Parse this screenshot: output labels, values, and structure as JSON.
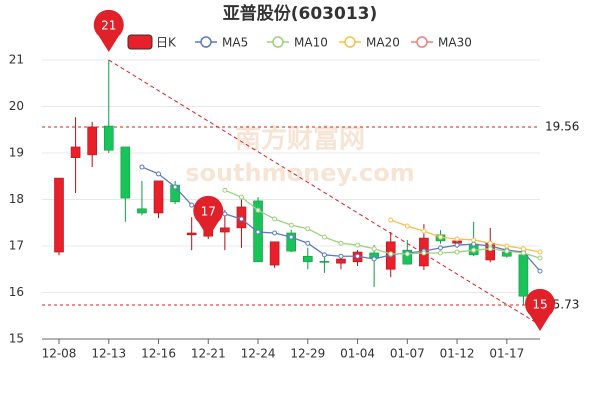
{
  "chart_data": {
    "type": "candlestick",
    "title": "亚普股份(603013)",
    "categories": [
      "12-08",
      null,
      null,
      "12-13",
      null,
      null,
      "12-16",
      null,
      null,
      "12-21",
      null,
      null,
      "12-24",
      null,
      null,
      "12-29",
      null,
      null,
      "01-04",
      null,
      null,
      "01-07",
      null,
      null,
      "01-12",
      null,
      null,
      "01-17",
      null,
      null
    ],
    "candle_name": "日K",
    "up_color": "#e8202a",
    "down_color": "#19c35a",
    "open": [
      16.87,
      18.9,
      18.96,
      19.58,
      19.13,
      17.8,
      17.71,
      18.31,
      17.24,
      17.21,
      17.3,
      17.39,
      17.97,
      16.59,
      17.28,
      16.78,
      16.67,
      16.63,
      16.66,
      16.85,
      16.5,
      16.91,
      16.57,
      17.24,
      17.06,
      17.04,
      16.7,
      16.87,
      16.81,
      15.92
    ],
    "high": [
      18.46,
      19.77,
      19.67,
      21,
      19.13,
      18.4,
      18.4,
      18.4,
      17.62,
      17.4,
      17.77,
      18.08,
      18.05,
      17.09,
      17.35,
      16.96,
      16.85,
      16.8,
      16.91,
      17.02,
      17.3,
      17.13,
      17.47,
      17.34,
      17.17,
      17.52,
      17.39,
      17.0,
      16.85,
      15.95
    ],
    "low": [
      16.8,
      18.14,
      18.7,
      19.0,
      17.52,
      17.66,
      17.6,
      17.9,
      16.91,
      17.15,
      16.91,
      16.96,
      16.66,
      16.53,
      16.87,
      16.5,
      16.42,
      16.5,
      16.57,
      16.12,
      16.33,
      16.6,
      16.48,
      17.05,
      16.96,
      16.78,
      16.65,
      16.75,
      15.73,
      15.42
    ],
    "close": [
      18.46,
      19.13,
      19.56,
      19.06,
      18.03,
      17.71,
      18.4,
      17.95,
      17.28,
      17.34,
      17.39,
      17.84,
      16.66,
      17.09,
      16.89,
      16.66,
      16.65,
      16.72,
      16.87,
      16.74,
      17.09,
      16.61,
      17.17,
      17.11,
      17.11,
      16.81,
      17.06,
      16.78,
      15.92,
      15.55
    ],
    "series": [
      {
        "name": "MA5",
        "color": "#5b7bc0",
        "values": [
          null,
          null,
          null,
          null,
          null,
          18.7,
          18.55,
          18.27,
          17.88,
          17.8,
          17.69,
          17.58,
          17.3,
          17.28,
          17.19,
          17.06,
          16.81,
          16.78,
          16.78,
          16.72,
          16.81,
          16.85,
          16.89,
          16.96,
          17.02,
          17.04,
          17.0,
          16.91,
          16.87,
          16.46
        ]
      },
      {
        "name": "MA10",
        "color": "#9ed27a",
        "values": [
          null,
          null,
          null,
          null,
          null,
          null,
          null,
          null,
          null,
          null,
          18.2,
          18.05,
          17.77,
          17.58,
          17.45,
          17.37,
          17.19,
          17.06,
          17.02,
          16.94,
          16.83,
          16.83,
          16.85,
          16.85,
          16.87,
          16.91,
          16.94,
          16.89,
          16.85,
          16.74
        ]
      },
      {
        "name": "MA20",
        "color": "#f5c04b",
        "values": [
          null,
          null,
          null,
          null,
          null,
          null,
          null,
          null,
          null,
          null,
          null,
          null,
          null,
          null,
          null,
          null,
          null,
          null,
          null,
          null,
          17.56,
          17.43,
          17.32,
          17.19,
          17.15,
          17.13,
          17.06,
          17.0,
          16.94,
          16.87
        ]
      },
      {
        "name": "MA30",
        "color": "#ef7f7f",
        "values": [
          null,
          null,
          null,
          null,
          null,
          null,
          null,
          null,
          null,
          null,
          null,
          null,
          null,
          null,
          null,
          null,
          null,
          null,
          null,
          null,
          null,
          null,
          null,
          null,
          null,
          null,
          null,
          null,
          null,
          null
        ]
      }
    ],
    "ylim": [
      15,
      21
    ],
    "yticks": [
      15,
      16,
      17,
      18,
      19,
      20,
      21
    ],
    "grid": true,
    "hlines": [
      19.56,
      15.73
    ],
    "markers": [
      {
        "index": 3,
        "value": 21
      },
      {
        "index": 9,
        "value": 17
      },
      {
        "index": 29,
        "value": 15
      }
    ],
    "watermark": [
      "南方财富网",
      "southmoney.com"
    ]
  }
}
